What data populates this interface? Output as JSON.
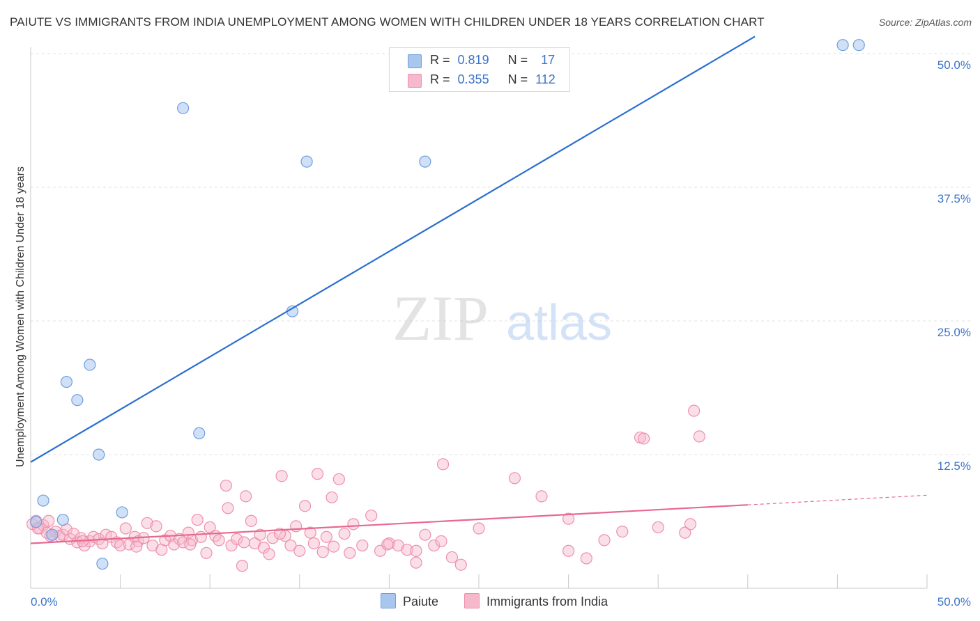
{
  "title": "PAIUTE VS IMMIGRANTS FROM INDIA UNEMPLOYMENT AMONG WOMEN WITH CHILDREN UNDER 18 YEARS CORRELATION CHART",
  "source": "Source: ZipAtlas.com",
  "watermark": {
    "zip": "ZIP",
    "atlas": "atlas"
  },
  "legend": {
    "r_label": "R =",
    "n_label": "N =",
    "rows": [
      {
        "r": "0.819",
        "n": "17"
      },
      {
        "r": "0.355",
        "n": "112"
      }
    ]
  },
  "bottom_legend": [
    "Paiute",
    "Immigrants from India"
  ],
  "colors": {
    "paiute_fill": "#a9c6ef",
    "paiute_stroke": "#6f9fe0",
    "paiute_line": "#2a6fd1",
    "india_fill": "#f6b8cb",
    "india_stroke": "#ee8fac",
    "india_line": "#e8688f",
    "tick_label": "#3b74c8",
    "grid": "#e0e0e0"
  },
  "chart_data": {
    "type": "scatter",
    "title": "PAIUTE VS IMMIGRANTS FROM INDIA UNEMPLOYMENT AMONG WOMEN WITH CHILDREN UNDER 18 YEARS CORRELATION CHART",
    "xlabel": "",
    "ylabel": "Unemployment Among Women with Children Under 18 years",
    "xlim": [
      0,
      50
    ],
    "ylim": [
      0,
      50
    ],
    "x_tick_labels": [
      "0.0%",
      "50.0%"
    ],
    "y_ticks": [
      12.5,
      25.0,
      37.5,
      50.0
    ],
    "y_tick_labels": [
      "12.5%",
      "25.0%",
      "37.5%",
      "50.0%"
    ],
    "grid": true,
    "series": [
      {
        "name": "Paiute",
        "r": 0.819,
        "n": 17,
        "trend": {
          "x": [
            0,
            40.4
          ],
          "y": [
            11.8,
            51.6
          ],
          "dashed_to": null
        },
        "points": [
          [
            0.3,
            6.2
          ],
          [
            0.7,
            8.2
          ],
          [
            1.2,
            5.0
          ],
          [
            1.8,
            6.4
          ],
          [
            2.0,
            19.3
          ],
          [
            2.6,
            17.6
          ],
          [
            3.3,
            20.9
          ],
          [
            3.8,
            12.5
          ],
          [
            5.1,
            7.1
          ],
          [
            4.0,
            2.3
          ],
          [
            8.5,
            44.9
          ],
          [
            9.4,
            14.5
          ],
          [
            15.4,
            39.9
          ],
          [
            14.6,
            25.9
          ],
          [
            22.0,
            39.9
          ],
          [
            45.3,
            50.8
          ],
          [
            46.2,
            50.8
          ]
        ]
      },
      {
        "name": "Immigrants from India",
        "r": 0.355,
        "n": 112,
        "trend": {
          "x": [
            0,
            40.0
          ],
          "y": [
            4.2,
            7.8
          ],
          "dashed_to": [
            50.0,
            8.7
          ]
        },
        "points": [
          [
            0.1,
            6.0
          ],
          [
            0.3,
            6.3
          ],
          [
            0.5,
            5.6
          ],
          [
            0.7,
            5.9
          ],
          [
            0.9,
            5.2
          ],
          [
            1.0,
            6.3
          ],
          [
            1.2,
            5.0
          ],
          [
            1.4,
            5.3
          ],
          [
            1.6,
            4.9
          ],
          [
            1.8,
            5.0
          ],
          [
            2.0,
            5.5
          ],
          [
            2.2,
            4.6
          ],
          [
            2.4,
            5.1
          ],
          [
            2.6,
            4.3
          ],
          [
            2.8,
            4.7
          ],
          [
            3.0,
            4.0
          ],
          [
            3.3,
            4.4
          ],
          [
            3.5,
            4.8
          ],
          [
            3.8,
            4.6
          ],
          [
            4.0,
            4.2
          ],
          [
            4.2,
            5.0
          ],
          [
            4.5,
            4.8
          ],
          [
            4.8,
            4.3
          ],
          [
            5.0,
            4.0
          ],
          [
            5.3,
            5.6
          ],
          [
            5.5,
            4.1
          ],
          [
            5.8,
            4.8
          ],
          [
            6.0,
            4.4
          ],
          [
            6.3,
            4.7
          ],
          [
            6.5,
            6.1
          ],
          [
            6.8,
            4.0
          ],
          [
            7.0,
            5.8
          ],
          [
            7.3,
            3.6
          ],
          [
            7.5,
            4.5
          ],
          [
            7.8,
            4.9
          ],
          [
            8.0,
            4.1
          ],
          [
            8.3,
            4.6
          ],
          [
            8.5,
            4.3
          ],
          [
            8.8,
            5.2
          ],
          [
            9.0,
            4.5
          ],
          [
            9.3,
            6.4
          ],
          [
            9.5,
            4.8
          ],
          [
            9.8,
            3.3
          ],
          [
            10.0,
            5.7
          ],
          [
            10.3,
            4.9
          ],
          [
            10.5,
            4.5
          ],
          [
            10.9,
            9.6
          ],
          [
            11.0,
            7.5
          ],
          [
            11.2,
            4.0
          ],
          [
            11.5,
            4.6
          ],
          [
            11.8,
            2.1
          ],
          [
            12.0,
            8.6
          ],
          [
            12.3,
            6.3
          ],
          [
            12.5,
            4.2
          ],
          [
            12.8,
            5.0
          ],
          [
            13.0,
            3.8
          ],
          [
            13.3,
            3.2
          ],
          [
            13.5,
            4.7
          ],
          [
            14.0,
            10.5
          ],
          [
            14.2,
            4.9
          ],
          [
            14.5,
            4.0
          ],
          [
            14.8,
            5.8
          ],
          [
            15.0,
            3.5
          ],
          [
            15.3,
            7.7
          ],
          [
            15.6,
            5.2
          ],
          [
            15.8,
            4.2
          ],
          [
            16.0,
            10.7
          ],
          [
            16.3,
            3.4
          ],
          [
            16.5,
            4.8
          ],
          [
            16.8,
            8.5
          ],
          [
            17.2,
            10.2
          ],
          [
            17.5,
            5.1
          ],
          [
            17.8,
            3.3
          ],
          [
            18.0,
            6.0
          ],
          [
            18.5,
            4.0
          ],
          [
            19.0,
            6.8
          ],
          [
            19.5,
            3.5
          ],
          [
            20.0,
            4.2
          ],
          [
            20.5,
            4.0
          ],
          [
            21.0,
            3.6
          ],
          [
            21.5,
            2.4
          ],
          [
            21.5,
            3.5
          ],
          [
            22.0,
            5.0
          ],
          [
            22.5,
            4.0
          ],
          [
            23.0,
            11.6
          ],
          [
            23.5,
            2.9
          ],
          [
            24.0,
            2.2
          ],
          [
            25.0,
            5.6
          ],
          [
            27.0,
            10.3
          ],
          [
            28.5,
            8.6
          ],
          [
            30.0,
            6.5
          ],
          [
            30.0,
            3.5
          ],
          [
            31.0,
            2.8
          ],
          [
            32.0,
            4.5
          ],
          [
            33.0,
            5.3
          ],
          [
            34.0,
            14.1
          ],
          [
            34.2,
            14.0
          ],
          [
            35.0,
            5.7
          ],
          [
            36.5,
            5.2
          ],
          [
            37.0,
            16.6
          ],
          [
            37.3,
            14.2
          ],
          [
            36.8,
            6.0
          ],
          [
            0.4,
            5.6
          ],
          [
            1.1,
            4.9
          ],
          [
            2.9,
            4.4
          ],
          [
            5.9,
            3.9
          ],
          [
            8.9,
            4.1
          ],
          [
            11.9,
            4.3
          ],
          [
            13.9,
            5.1
          ],
          [
            16.9,
            3.9
          ],
          [
            19.9,
            4.1
          ],
          [
            22.9,
            4.4
          ]
        ]
      }
    ]
  }
}
